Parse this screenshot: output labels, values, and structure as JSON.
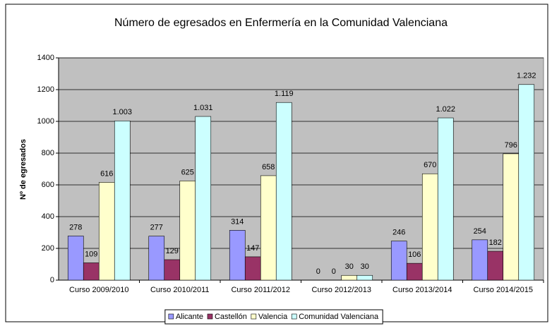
{
  "chart_data": {
    "type": "bar",
    "title": "Número de egresados en Enfermería en la Comunidad Valenciana",
    "ylabel": "Nº de egresados",
    "categories": [
      "Curso 2009/2010",
      "Curso 2010/2011",
      "Curso 2011/2012",
      "Curso 2012/2013",
      "Curso 2013/2014",
      "Curso 2014/2015"
    ],
    "series": [
      {
        "name": "Alicante",
        "color": "#9999ff",
        "values": [
          278,
          277,
          314,
          0,
          246,
          254
        ]
      },
      {
        "name": "Castellón",
        "color": "#993366",
        "values": [
          109,
          129,
          147,
          0,
          106,
          182
        ]
      },
      {
        "name": "Valencia",
        "color": "#ffffcc",
        "values": [
          616,
          625,
          658,
          30,
          670,
          796
        ]
      },
      {
        "name": "Comunidad Valenciana",
        "color": "#ccffff",
        "values": [
          1003,
          1031,
          1119,
          30,
          1022,
          1232
        ],
        "value_labels": [
          "1.003",
          "1.031",
          "1.119",
          "30",
          "1.022",
          "1.232"
        ]
      }
    ],
    "ylim": [
      0,
      1400
    ],
    "yticks": [
      0,
      200,
      400,
      600,
      800,
      1000,
      1200,
      1400
    ],
    "grid": true,
    "legend": "bottom",
    "plot_background": "#c0c0c0"
  }
}
